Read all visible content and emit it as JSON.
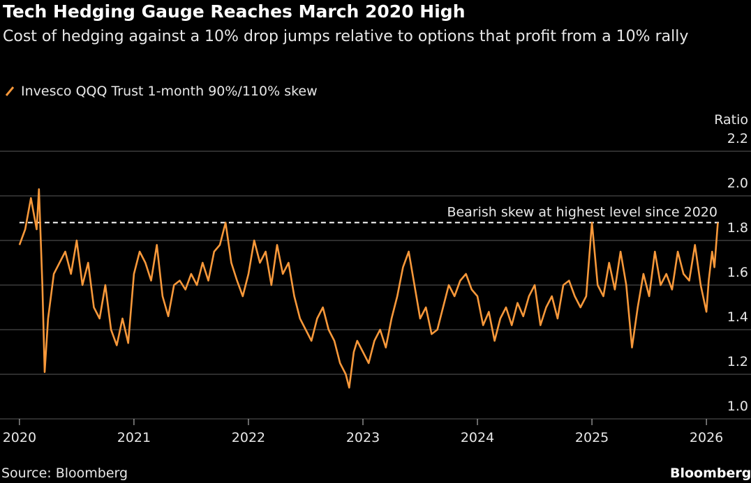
{
  "chart_data": {
    "type": "line",
    "title": "Tech Hedging Gauge Reaches March 2020 High",
    "subtitle": "Cost of hedging against a 10% drop jumps relative to options that profit from a 10% rally",
    "y_label": "Ratio",
    "source": "Source: Bloomberg",
    "brand": "Bloomberg",
    "xlim": [
      2019.83,
      2026.17
    ],
    "xticks": [
      2020,
      2021,
      2022,
      2023,
      2024,
      2025,
      2026
    ],
    "ylim": [
      1.0,
      2.2
    ],
    "yticks": [
      {
        "value": 1.0,
        "label": "1.0"
      },
      1.2,
      1.4,
      1.6,
      1.8,
      {
        "value": 2.0,
        "label": "2.0"
      },
      2.2
    ],
    "grid": true,
    "reference": {
      "value": 1.88,
      "label": "Bearish skew at highest level since 2020",
      "color": "#ffffff"
    },
    "series": [
      {
        "name": "Invesco QQQ Trust 1-month 90%/110% skew",
        "color": "#f7983a",
        "x": [
          2020.0,
          2020.05,
          2020.1,
          2020.15,
          2020.17,
          2020.2,
          2020.22,
          2020.25,
          2020.3,
          2020.35,
          2020.4,
          2020.45,
          2020.5,
          2020.55,
          2020.6,
          2020.65,
          2020.7,
          2020.75,
          2020.8,
          2020.85,
          2020.9,
          2020.95,
          2021.0,
          2021.05,
          2021.1,
          2021.15,
          2021.2,
          2021.25,
          2021.3,
          2021.35,
          2021.4,
          2021.45,
          2021.5,
          2021.55,
          2021.6,
          2021.65,
          2021.7,
          2021.75,
          2021.8,
          2021.85,
          2021.9,
          2021.95,
          2022.0,
          2022.05,
          2022.1,
          2022.15,
          2022.2,
          2022.25,
          2022.3,
          2022.35,
          2022.4,
          2022.45,
          2022.5,
          2022.55,
          2022.6,
          2022.65,
          2022.7,
          2022.75,
          2022.8,
          2022.85,
          2022.88,
          2022.92,
          2022.95,
          2023.0,
          2023.05,
          2023.1,
          2023.15,
          2023.2,
          2023.25,
          2023.3,
          2023.35,
          2023.4,
          2023.45,
          2023.5,
          2023.55,
          2023.6,
          2023.65,
          2023.7,
          2023.75,
          2023.8,
          2023.85,
          2023.9,
          2023.95,
          2024.0,
          2024.05,
          2024.1,
          2024.15,
          2024.2,
          2024.25,
          2024.3,
          2024.35,
          2024.4,
          2024.45,
          2024.5,
          2024.55,
          2024.6,
          2024.65,
          2024.7,
          2024.75,
          2024.8,
          2024.85,
          2024.9,
          2024.95,
          2025.0,
          2025.05,
          2025.1,
          2025.15,
          2025.2,
          2025.25,
          2025.3,
          2025.35,
          2025.4,
          2025.45,
          2025.5,
          2025.55,
          2025.6,
          2025.65,
          2025.7,
          2025.75,
          2025.8,
          2025.85,
          2025.9,
          2025.95,
          2026.0,
          2026.02,
          2026.05,
          2026.07,
          2026.1
        ],
        "values": [
          1.78,
          1.85,
          1.99,
          1.85,
          2.03,
          1.6,
          1.21,
          1.45,
          1.65,
          1.7,
          1.75,
          1.65,
          1.8,
          1.6,
          1.7,
          1.5,
          1.45,
          1.6,
          1.4,
          1.33,
          1.45,
          1.34,
          1.65,
          1.75,
          1.7,
          1.62,
          1.78,
          1.55,
          1.46,
          1.6,
          1.62,
          1.58,
          1.65,
          1.6,
          1.7,
          1.62,
          1.75,
          1.78,
          1.88,
          1.7,
          1.62,
          1.55,
          1.65,
          1.8,
          1.7,
          1.75,
          1.6,
          1.78,
          1.65,
          1.7,
          1.55,
          1.45,
          1.4,
          1.35,
          1.45,
          1.5,
          1.4,
          1.35,
          1.25,
          1.2,
          1.14,
          1.3,
          1.35,
          1.3,
          1.25,
          1.35,
          1.4,
          1.32,
          1.45,
          1.55,
          1.68,
          1.75,
          1.6,
          1.45,
          1.5,
          1.38,
          1.4,
          1.5,
          1.6,
          1.55,
          1.62,
          1.65,
          1.58,
          1.55,
          1.42,
          1.48,
          1.35,
          1.45,
          1.5,
          1.42,
          1.52,
          1.46,
          1.55,
          1.6,
          1.42,
          1.5,
          1.55,
          1.45,
          1.6,
          1.62,
          1.55,
          1.5,
          1.55,
          1.88,
          1.6,
          1.55,
          1.7,
          1.58,
          1.75,
          1.6,
          1.32,
          1.5,
          1.65,
          1.55,
          1.75,
          1.6,
          1.65,
          1.58,
          1.75,
          1.65,
          1.62,
          1.78,
          1.6,
          1.48,
          1.62,
          1.75,
          1.68,
          1.88
        ]
      }
    ]
  }
}
